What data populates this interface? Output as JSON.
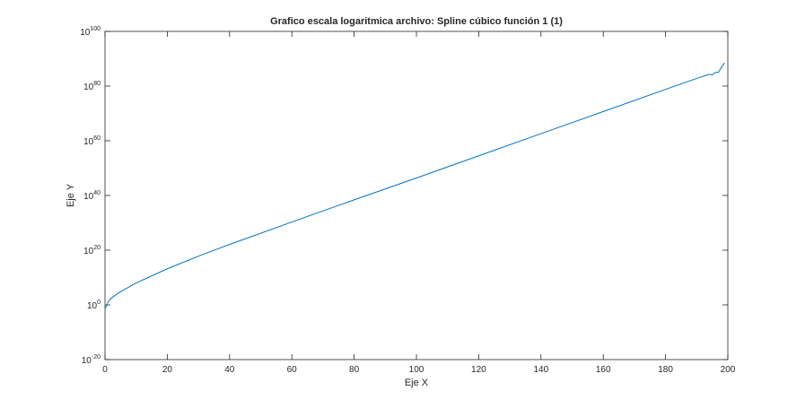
{
  "chart_data": {
    "type": "line",
    "title": "Grafico escala logaritmica archivo: Spline cúbico función 1 (1)",
    "xlabel": "Eje X",
    "ylabel": "Eje Y",
    "xlim": [
      0,
      200
    ],
    "ylim_exponent": [
      -20,
      100
    ],
    "yscale": "log",
    "grid": false,
    "legend": "none",
    "line_color": "#0072BD",
    "xticks": [
      {
        "value": 0,
        "label": "0"
      },
      {
        "value": 20,
        "label": "20"
      },
      {
        "value": 40,
        "label": "40"
      },
      {
        "value": 60,
        "label": "60"
      },
      {
        "value": 80,
        "label": "80"
      },
      {
        "value": 100,
        "label": "100"
      },
      {
        "value": 120,
        "label": "120"
      },
      {
        "value": 140,
        "label": "140"
      },
      {
        "value": 160,
        "label": "160"
      },
      {
        "value": 180,
        "label": "180"
      },
      {
        "value": 200,
        "label": "200"
      }
    ],
    "yticks": [
      {
        "exponent": -20,
        "base": "10",
        "exp": "-20"
      },
      {
        "exponent": 0,
        "base": "10",
        "exp": "0"
      },
      {
        "exponent": 20,
        "base": "10",
        "exp": "20"
      },
      {
        "exponent": 40,
        "base": "10",
        "exp": "40"
      },
      {
        "exponent": 60,
        "base": "10",
        "exp": "60"
      },
      {
        "exponent": 80,
        "base": "10",
        "exp": "80"
      },
      {
        "exponent": 100,
        "base": "10",
        "exp": "100"
      }
    ],
    "series": [
      {
        "x": [
          0,
          0.5,
          1,
          2,
          3,
          5,
          10,
          20,
          30,
          40,
          60,
          80,
          100,
          120,
          140,
          160,
          180,
          190,
          194,
          195,
          196,
          197,
          198,
          199
        ],
        "log10_y": [
          -1.2,
          -0.5,
          1.2,
          2.4,
          3.3,
          4.8,
          8.0,
          13.2,
          17.8,
          22.1,
          30.3,
          38.4,
          46.4,
          54.5,
          62.6,
          70.7,
          78.8,
          82.8,
          84.3,
          84.1,
          85.0,
          85.0,
          87.0,
          88.5
        ]
      }
    ]
  }
}
